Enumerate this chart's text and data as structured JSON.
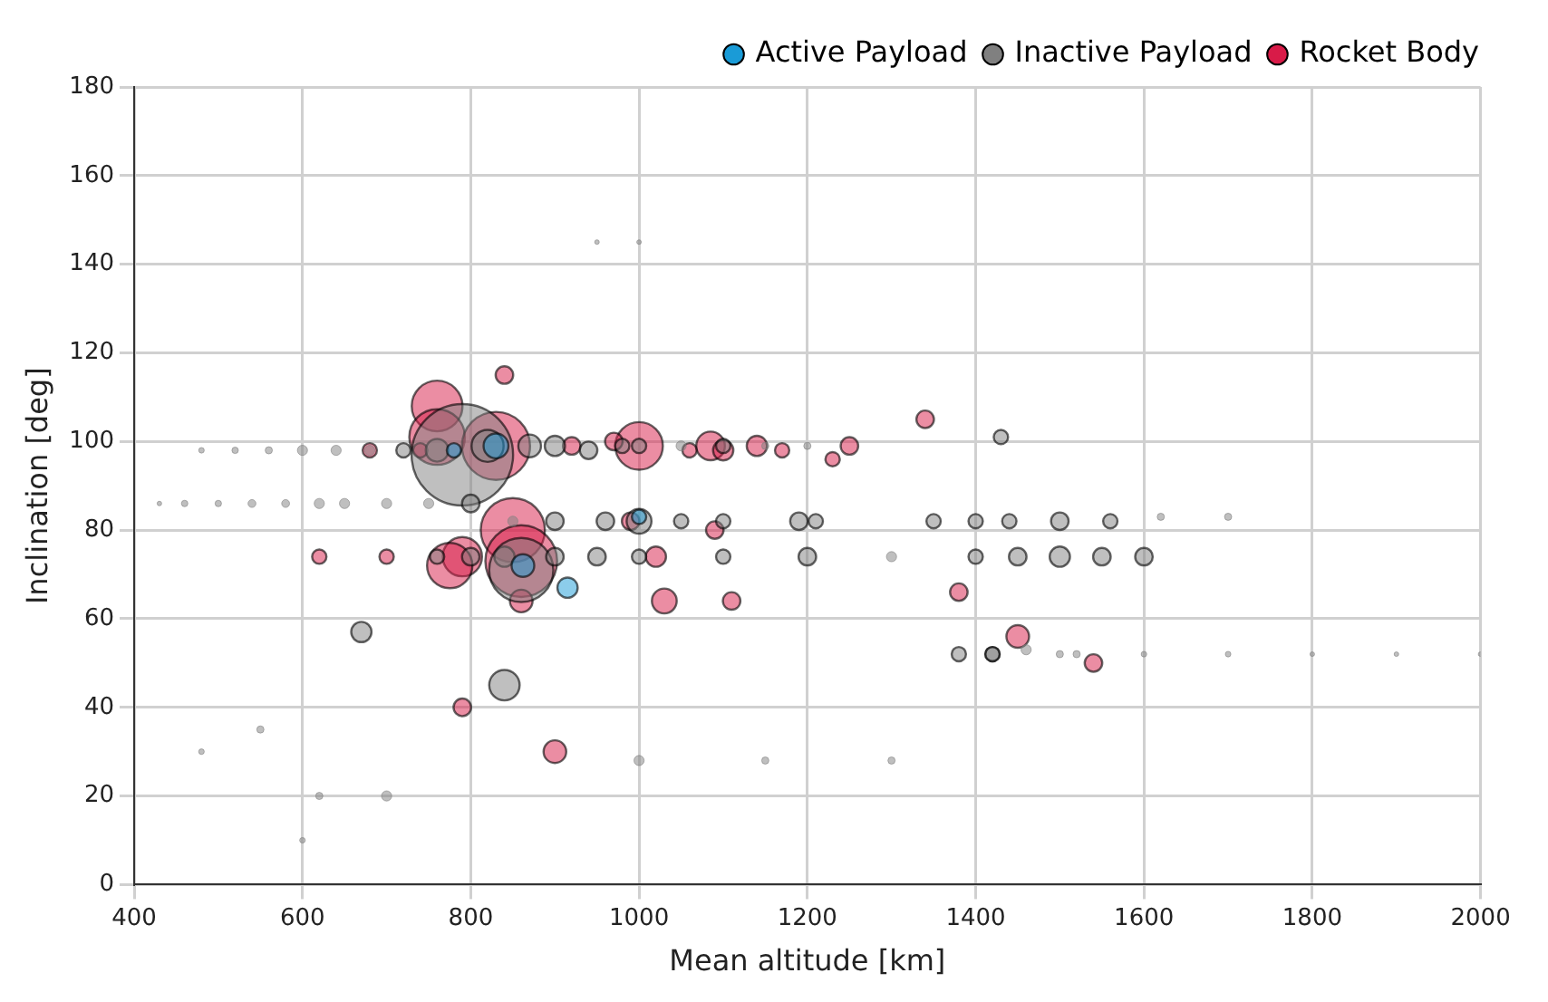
{
  "chart_data": {
    "type": "bubble",
    "xlabel": "Mean altitude [km]",
    "ylabel": "Inclination [deg]",
    "xlim": [
      400,
      2000
    ],
    "ylim": [
      0,
      180
    ],
    "xticks": [
      400,
      600,
      800,
      1000,
      1200,
      1400,
      1600,
      1800,
      2000
    ],
    "yticks": [
      0,
      20,
      40,
      60,
      80,
      100,
      120,
      140,
      160,
      180
    ],
    "grid": true,
    "legend": "top right",
    "relative": false,
    "series": [
      {
        "name": "Active Payload",
        "color": "#1a9bd7",
        "x": [
          830,
          915,
          862,
          780,
          1000
        ],
        "values": [
          99,
          67,
          72,
          98,
          83
        ],
        "sizes": [
          0.06,
          0.04,
          0.05,
          0.02,
          0.02
        ]
      },
      {
        "name": "Inactive Payload",
        "color": "#808080",
        "x": [
          480,
          520,
          560,
          600,
          640,
          680,
          720,
          760,
          790,
          820,
          870,
          900,
          940,
          980,
          1000,
          1050,
          1100,
          1150,
          1200,
          430,
          460,
          500,
          540,
          580,
          620,
          650,
          700,
          750,
          800,
          850,
          900,
          960,
          1000,
          1050,
          1100,
          1190,
          1210,
          1350,
          1400,
          1440,
          1500,
          1560,
          1620,
          1700,
          760,
          800,
          840,
          860,
          900,
          950,
          1000,
          1100,
          1200,
          1300,
          1400,
          1450,
          1500,
          1550,
          1600,
          1420,
          1500,
          1600,
          1700,
          1800,
          1900,
          2000,
          840,
          670,
          620,
          700,
          1000,
          1150,
          1300,
          550,
          480,
          600,
          950,
          1000,
          1380,
          1420,
          1460,
          1520,
          1430
        ],
        "values": [
          98,
          98,
          98,
          98,
          98,
          98,
          98,
          98,
          97,
          99,
          99,
          99,
          98,
          99,
          99,
          99,
          99,
          99,
          99,
          86,
          86,
          86,
          86,
          86,
          86,
          86,
          86,
          86,
          86,
          82,
          82,
          82,
          82,
          82,
          82,
          82,
          82,
          82,
          82,
          82,
          82,
          82,
          83,
          83,
          74,
          74,
          74,
          71,
          74,
          74,
          74,
          74,
          74,
          74,
          74,
          74,
          74,
          74,
          74,
          52,
          52,
          52,
          52,
          52,
          52,
          52,
          45,
          57,
          20,
          20,
          28,
          28,
          28,
          35,
          30,
          10,
          145,
          145,
          52,
          52,
          53,
          52,
          101
        ],
        "sizes": [
          0.003,
          0.004,
          0.005,
          0.01,
          0.01,
          0.01,
          0.02,
          0.05,
          1,
          0.1,
          0.05,
          0.04,
          0.03,
          0.02,
          0.02,
          0.01,
          0.02,
          0.005,
          0.005,
          0.002,
          0.004,
          0.004,
          0.006,
          0.006,
          0.01,
          0.01,
          0.01,
          0.01,
          0.03,
          0.01,
          0.03,
          0.03,
          0.06,
          0.02,
          0.02,
          0.03,
          0.02,
          0.02,
          0.02,
          0.02,
          0.03,
          0.02,
          0.005,
          0.005,
          0.02,
          0.03,
          0.04,
          0.4,
          0.03,
          0.03,
          0.02,
          0.02,
          0.03,
          0.01,
          0.02,
          0.03,
          0.04,
          0.03,
          0.03,
          0.02,
          0.005,
          0.003,
          0.003,
          0.002,
          0.002,
          0.002,
          0.09,
          0.04,
          0.005,
          0.01,
          0.01,
          0.005,
          0.005,
          0.005,
          0.003,
          0.003,
          0.002,
          0.002,
          0.02,
          0.02,
          0.01,
          0.005,
          0.02
        ]
      },
      {
        "name": "Rocket Body",
        "color": "#d81b48",
        "x": [
          760,
          760,
          830,
          1000,
          850,
          860,
          790,
          775,
          1085,
          1140,
          1250,
          1340,
          1450,
          1540,
          1030,
          1110,
          900,
          790,
          1090,
          1380,
          700,
          620,
          680,
          740,
          860,
          920,
          970,
          1020,
          1100,
          1170,
          1230,
          1060,
          990,
          840
        ],
        "values": [
          108,
          101,
          99,
          99,
          80,
          73,
          74,
          72,
          99,
          99,
          99,
          105,
          56,
          50,
          64,
          64,
          30,
          40,
          80,
          66,
          74,
          74,
          98,
          98,
          64,
          99,
          100,
          74,
          98,
          98,
          96,
          98,
          82,
          115
        ],
        "sizes": [
          0.25,
          0.3,
          0.45,
          0.22,
          0.4,
          0.5,
          0.15,
          0.2,
          0.08,
          0.04,
          0.03,
          0.03,
          0.05,
          0.03,
          0.06,
          0.03,
          0.05,
          0.03,
          0.03,
          0.03,
          0.02,
          0.02,
          0.02,
          0.02,
          0.05,
          0.03,
          0.03,
          0.04,
          0.04,
          0.02,
          0.02,
          0.02,
          0.03,
          0.03
        ]
      }
    ]
  }
}
